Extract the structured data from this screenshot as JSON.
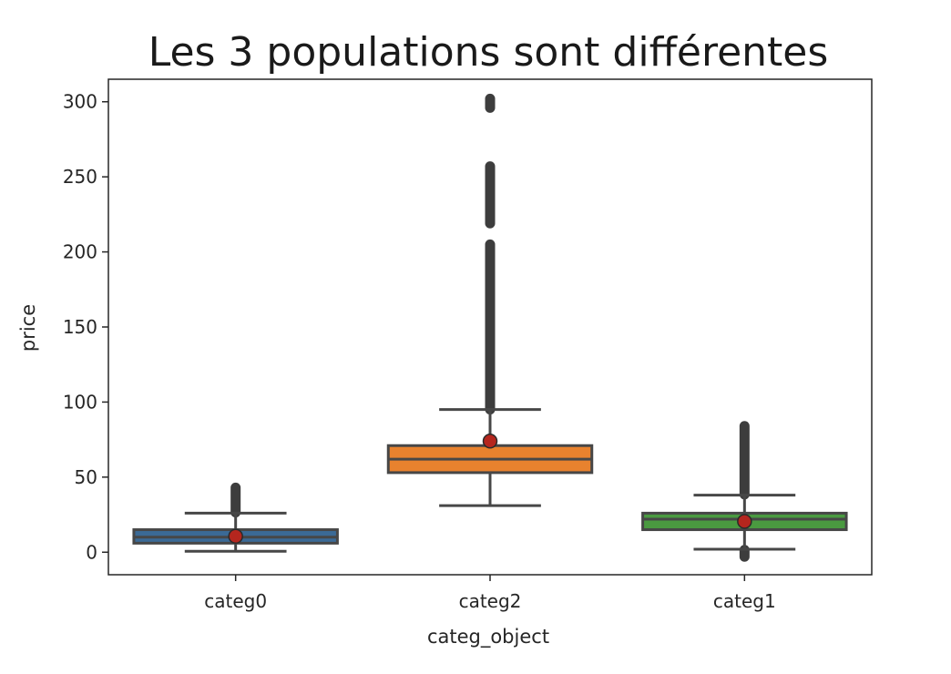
{
  "chart_data": {
    "type": "box",
    "title": "Les 3 populations sont différentes",
    "xlabel": "categ_object",
    "ylabel": "price",
    "ylim": [
      -15,
      315
    ],
    "yticks": [
      0,
      50,
      100,
      150,
      200,
      250,
      300
    ],
    "grid": false,
    "categories": [
      "categ0",
      "categ2",
      "categ1"
    ],
    "boxes": [
      {
        "category": "categ0",
        "color": "#3b6a96",
        "q1": 6,
        "median": 10,
        "q3": 15,
        "whisker_low": 0.6,
        "whisker_high": 26,
        "mean": 10.6,
        "outliers_range": [
          [
            26.5,
            43
          ]
        ]
      },
      {
        "category": "categ2",
        "color": "#e8822e",
        "q1": 53,
        "median": 62,
        "q3": 71,
        "whisker_low": 31,
        "whisker_high": 95,
        "mean": 74,
        "outliers_range": [
          [
            95,
            205
          ],
          [
            219,
            257
          ],
          [
            296,
            302
          ]
        ]
      },
      {
        "category": "categ1",
        "color": "#4a9a40",
        "q1": 15,
        "median": 22,
        "q3": 26,
        "whisker_low": 2,
        "whisker_high": 38,
        "mean": 20.5,
        "outliers_range": [
          [
            38.5,
            84
          ],
          [
            -3,
            1.5
          ]
        ]
      }
    ],
    "mean_marker_color": "#b5261e"
  }
}
